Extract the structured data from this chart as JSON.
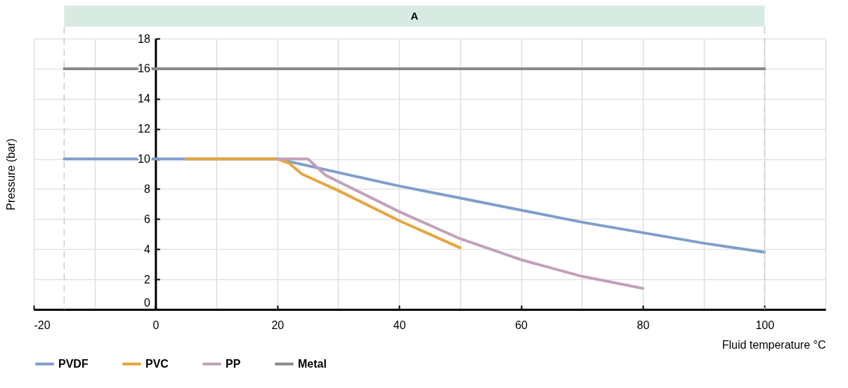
{
  "chart_data": {
    "type": "line",
    "xlabel": "Fluid temperature °C",
    "ylabel": "Pressure (bar)",
    "xlim": [
      -20,
      110
    ],
    "xticks": [
      -20,
      {
        "value": -10,
        "label": null
      },
      0,
      {
        "value": 10,
        "label": null
      },
      20,
      {
        "value": 30,
        "label": null
      },
      40,
      {
        "value": 50,
        "label": null
      },
      60,
      {
        "value": 70,
        "label": null
      },
      80,
      {
        "value": 90,
        "label": null
      },
      100,
      {
        "value": 110,
        "label": null
      }
    ],
    "ylim": [
      0,
      18
    ],
    "yticks": [
      0,
      2,
      4,
      6,
      8,
      10,
      12,
      14,
      16,
      18
    ],
    "grid": true,
    "legend": "bottom",
    "line_style": "solid",
    "marker": "none",
    "ref_lines": [
      {
        "axis": "x",
        "value": -15,
        "color": "#cccccc",
        "line_style": "dashed"
      },
      {
        "axis": "x",
        "value": 100,
        "color": "#cccccc",
        "line_style": "dashed"
      }
    ],
    "annotations": [
      "A"
    ],
    "series": [
      {
        "name": "PVDF",
        "color": "#7f9fcb",
        "x": [
          -15,
          20,
          30,
          40,
          50,
          60,
          70,
          80,
          90,
          100
        ],
        "values": [
          10,
          10,
          9.1,
          8.2,
          7.4,
          6.6,
          5.8,
          5.1,
          4.4,
          3.8
        ]
      },
      {
        "name": "PVC",
        "color": "#e8a43f",
        "x": [
          5,
          20,
          22,
          24,
          30,
          40,
          50
        ],
        "values": [
          10,
          10,
          9.7,
          9.0,
          7.9,
          5.9,
          4.1
        ]
      },
      {
        "name": "PP",
        "color": "#c2a0bb",
        "x": [
          20,
          25,
          28,
          30,
          40,
          50,
          60,
          70,
          80
        ],
        "values": [
          10,
          10,
          8.9,
          8.5,
          6.5,
          4.7,
          3.3,
          2.2,
          1.4
        ]
      },
      {
        "name": "Metal",
        "color": "#8a8a8a",
        "x": [
          -15,
          100
        ],
        "values": [
          16,
          16
        ]
      }
    ]
  }
}
